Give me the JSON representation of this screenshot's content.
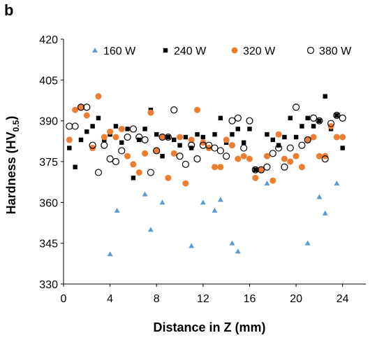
{
  "panel_label": "b",
  "chart_data": {
    "type": "scatter",
    "xlabel": "Distance in Z (mm)",
    "ylabel": {
      "main": "Hardness (HV",
      "sub": "0.5",
      "close": ")"
    },
    "xlim": [
      0,
      26
    ],
    "ylim": [
      330,
      420
    ],
    "xticks": [
      "0",
      "4",
      "8",
      "12",
      "16",
      "20",
      "24"
    ],
    "yticks": [
      "330",
      "345",
      "360",
      "375",
      "390",
      "405",
      "420"
    ],
    "grid": false,
    "legend_position": "top",
    "series": [
      {
        "name": "160 W",
        "marker": "triangle",
        "color": "#5b9bd5",
        "points": [
          [
            4.0,
            341
          ],
          [
            4.6,
            357
          ],
          [
            7.0,
            363
          ],
          [
            7.5,
            350
          ],
          [
            8.5,
            360
          ],
          [
            11.0,
            344
          ],
          [
            12.0,
            360
          ],
          [
            13.0,
            357
          ],
          [
            13.5,
            361
          ],
          [
            14.5,
            345
          ],
          [
            15.0,
            342
          ],
          [
            17.5,
            367
          ],
          [
            21.0,
            345
          ],
          [
            22.0,
            362
          ],
          [
            22.5,
            356
          ],
          [
            23.5,
            367
          ]
        ]
      },
      {
        "name": "240 W",
        "marker": "square",
        "color": "#000000",
        "points": [
          [
            0.5,
            380
          ],
          [
            1.0,
            373
          ],
          [
            1.5,
            383
          ],
          [
            2.0,
            386
          ],
          [
            2.5,
            388
          ],
          [
            3.0,
            391
          ],
          [
            3.5,
            383
          ],
          [
            4.0,
            385
          ],
          [
            4.5,
            388
          ],
          [
            5.0,
            382
          ],
          [
            5.5,
            387
          ],
          [
            6.0,
            369
          ],
          [
            6.5,
            383
          ],
          [
            7.0,
            387
          ],
          [
            7.5,
            394
          ],
          [
            8.0,
            385
          ],
          [
            8.5,
            377
          ],
          [
            9.0,
            384
          ],
          [
            9.5,
            383
          ],
          [
            10.0,
            381
          ],
          [
            10.5,
            384
          ],
          [
            11.0,
            380
          ],
          [
            11.5,
            385
          ],
          [
            12.0,
            384
          ],
          [
            12.5,
            380
          ],
          [
            13.0,
            385
          ],
          [
            13.5,
            391
          ],
          [
            14.0,
            382
          ],
          [
            14.5,
            385
          ],
          [
            15.0,
            387
          ],
          [
            15.5,
            382
          ],
          [
            16.0,
            387
          ],
          [
            16.5,
            372
          ],
          [
            17.0,
            372
          ],
          [
            17.5,
            385
          ],
          [
            18.0,
            383
          ],
          [
            18.5,
            381
          ],
          [
            19.0,
            384
          ],
          [
            19.5,
            391
          ],
          [
            20.0,
            384
          ],
          [
            20.5,
            388
          ],
          [
            21.0,
            391
          ],
          [
            21.5,
            388
          ],
          [
            22.0,
            390
          ],
          [
            22.5,
            399
          ],
          [
            23.0,
            387
          ],
          [
            23.5,
            392
          ],
          [
            24.0,
            380
          ]
        ]
      },
      {
        "name": "320 W",
        "marker": "circle",
        "color": "#ed7d31",
        "points": [
          [
            0.5,
            383
          ],
          [
            1.0,
            394
          ],
          [
            1.5,
            395
          ],
          [
            2.0,
            392
          ],
          [
            2.5,
            380
          ],
          [
            3.0,
            399
          ],
          [
            3.5,
            384
          ],
          [
            4.0,
            386
          ],
          [
            4.5,
            384
          ],
          [
            5.0,
            387
          ],
          [
            5.5,
            377
          ],
          [
            6.0,
            374
          ],
          [
            6.5,
            371
          ],
          [
            7.0,
            378
          ],
          [
            7.5,
            393
          ],
          [
            8.0,
            379
          ],
          [
            8.5,
            384
          ],
          [
            9.0,
            369
          ],
          [
            9.5,
            378
          ],
          [
            10.0,
            384
          ],
          [
            10.5,
            367
          ],
          [
            11.0,
            383
          ],
          [
            11.5,
            394
          ],
          [
            12.0,
            382
          ],
          [
            12.5,
            380
          ],
          [
            13.0,
            373
          ],
          [
            13.5,
            373
          ],
          [
            14.0,
            383
          ],
          [
            14.5,
            381
          ],
          [
            15.0,
            376
          ],
          [
            15.5,
            377
          ],
          [
            16.0,
            376
          ],
          [
            16.5,
            369
          ],
          [
            17.0,
            372
          ],
          [
            17.5,
            377
          ],
          [
            18.0,
            368
          ],
          [
            18.5,
            385
          ],
          [
            19.0,
            376
          ],
          [
            19.5,
            375
          ],
          [
            20.0,
            377
          ],
          [
            20.5,
            373
          ],
          [
            21.0,
            383
          ],
          [
            21.5,
            384
          ],
          [
            22.0,
            377
          ],
          [
            22.5,
            377
          ],
          [
            23.0,
            388
          ],
          [
            23.5,
            384
          ],
          [
            24.0,
            384
          ]
        ]
      },
      {
        "name": "380 W",
        "marker": "circle-open",
        "color": "#000000",
        "points": [
          [
            0.5,
            388
          ],
          [
            1.0,
            388
          ],
          [
            1.5,
            395
          ],
          [
            2.0,
            395
          ],
          [
            2.5,
            381
          ],
          [
            3.0,
            371
          ],
          [
            3.5,
            381
          ],
          [
            4.0,
            376
          ],
          [
            4.5,
            375
          ],
          [
            5.0,
            379
          ],
          [
            5.5,
            384
          ],
          [
            6.0,
            387
          ],
          [
            6.5,
            384
          ],
          [
            7.0,
            383
          ],
          [
            7.5,
            371
          ],
          [
            8.0,
            379
          ],
          [
            8.5,
            384
          ],
          [
            9.0,
            384
          ],
          [
            9.5,
            394
          ],
          [
            10.0,
            377
          ],
          [
            10.5,
            374
          ],
          [
            11.0,
            381
          ],
          [
            11.5,
            376
          ],
          [
            12.0,
            381
          ],
          [
            12.5,
            381
          ],
          [
            13.0,
            380
          ],
          [
            13.5,
            379
          ],
          [
            14.0,
            377
          ],
          [
            14.5,
            390
          ],
          [
            15.0,
            391
          ],
          [
            15.5,
            380
          ],
          [
            16.0,
            390
          ],
          [
            16.5,
            372
          ],
          [
            17.0,
            372
          ],
          [
            17.5,
            373
          ],
          [
            18.0,
            378
          ],
          [
            18.5,
            380
          ],
          [
            19.0,
            373
          ],
          [
            19.5,
            380
          ],
          [
            20.0,
            395
          ],
          [
            20.5,
            381
          ],
          [
            21.0,
            383
          ],
          [
            21.5,
            391
          ],
          [
            22.0,
            390
          ],
          [
            22.5,
            376
          ],
          [
            23.0,
            389
          ],
          [
            23.5,
            392
          ],
          [
            24.0,
            391
          ]
        ]
      }
    ]
  }
}
